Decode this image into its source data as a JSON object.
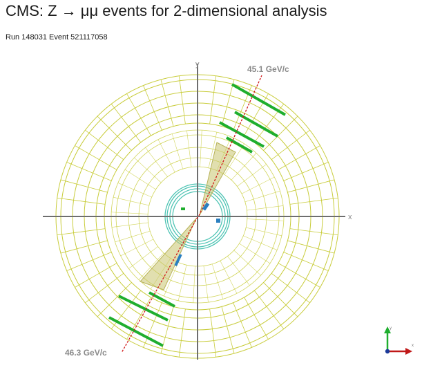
{
  "header": {
    "title": "CMS: Z → μμ events for 2-dimensional analysis",
    "subtitle": "Run 148031 Event 521117058"
  },
  "axes": {
    "x_label": "x",
    "y_label": "y"
  },
  "tracks": [
    {
      "momentum_label": "45.1 GeV/c"
    },
    {
      "momentum_label": "46.3 GeV/c"
    }
  ],
  "colors": {
    "detector_grid": "#c8cc3a",
    "tracker_rings": "#4fc4b4",
    "muon_chambers": "#1fae2e",
    "track_line": "#d01818",
    "energy_cone": "#c9c56e",
    "calo_deposit": "#2b7fc0",
    "axis_lines": "#6e6e6e"
  },
  "orientation_icon": "xy-axes-icon"
}
